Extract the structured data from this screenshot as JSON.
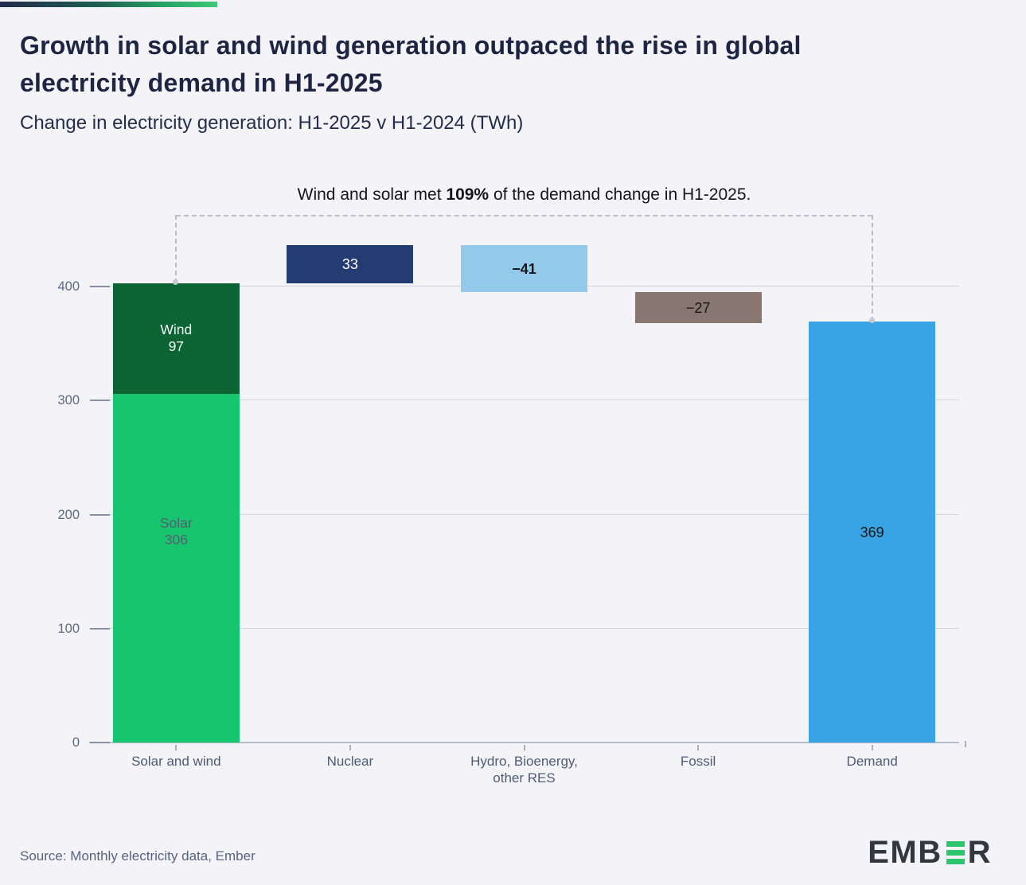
{
  "page": {
    "title_line1": "Growth in solar and wind generation outpaced the rise in global",
    "title_line2": "electricity demand in H1-2025",
    "subtitle": "Change in electricity generation: H1-2025 v H1-2024 (TWh)",
    "source": "Source: Monthly electricity data, Ember",
    "logo": {
      "left": "EMB",
      "right": "R"
    }
  },
  "colors": {
    "background": "#f4f4f8",
    "title": "#1e2543",
    "accent_gradient_start": "#232a4e",
    "accent_gradient_end": "#3fc878",
    "logo_green": "#2ec56f"
  },
  "chart_data": {
    "type": "bar",
    "subtype": "waterfall",
    "title": "Growth in solar and wind generation outpaced the rise in global electricity demand in H1-2025",
    "subtitle": "Change in electricity generation: H1-2025 v H1-2024 (TWh)",
    "unit": "TWh",
    "ylim": [
      0,
      400
    ],
    "yticks": [
      0,
      100,
      200,
      300,
      400
    ],
    "grid": "horizontal",
    "legend": "none",
    "categories": [
      "Solar and wind",
      "Nuclear",
      "Hydro, Bioenergy,\nother RES",
      "Fossil",
      "Demand"
    ],
    "bars": [
      {
        "category": "Solar and wind",
        "kind": "stacked",
        "base": 0,
        "total": 403,
        "segments": [
          {
            "name": "Solar",
            "value": 306,
            "color": "#15c66f",
            "label_color": "#546170",
            "label_bold": false
          },
          {
            "name": "Wind",
            "value": 97,
            "color": "#0c6334",
            "label_color": "#f5f7f6",
            "label_bold": false
          }
        ]
      },
      {
        "category": "Nuclear",
        "kind": "float",
        "value": 33,
        "start": 403,
        "end": 436,
        "color": "#253c72",
        "label": "33",
        "label_color": "#ffffff",
        "label_bold": false
      },
      {
        "category": "Hydro, Bioenergy, other RES",
        "kind": "float",
        "value": -41,
        "start": 436,
        "end": 395,
        "color": "#93c9eb",
        "label": "−41",
        "label_color": "#16161a",
        "label_bold": true
      },
      {
        "category": "Fossil",
        "kind": "float",
        "value": -27,
        "start": 395,
        "end": 368,
        "color": "#877770",
        "label": "−27",
        "label_color": "#16161a",
        "label_bold": false
      },
      {
        "category": "Demand",
        "kind": "total",
        "value": 369,
        "start": 0,
        "end": 369,
        "color": "#38a4e4",
        "label": "369",
        "label_color": "#16161a",
        "label_bold": false
      }
    ],
    "annotation": {
      "prefix": "Wind and solar met ",
      "bold": "109%",
      "suffix": " of the demand change in H1-2025."
    }
  }
}
